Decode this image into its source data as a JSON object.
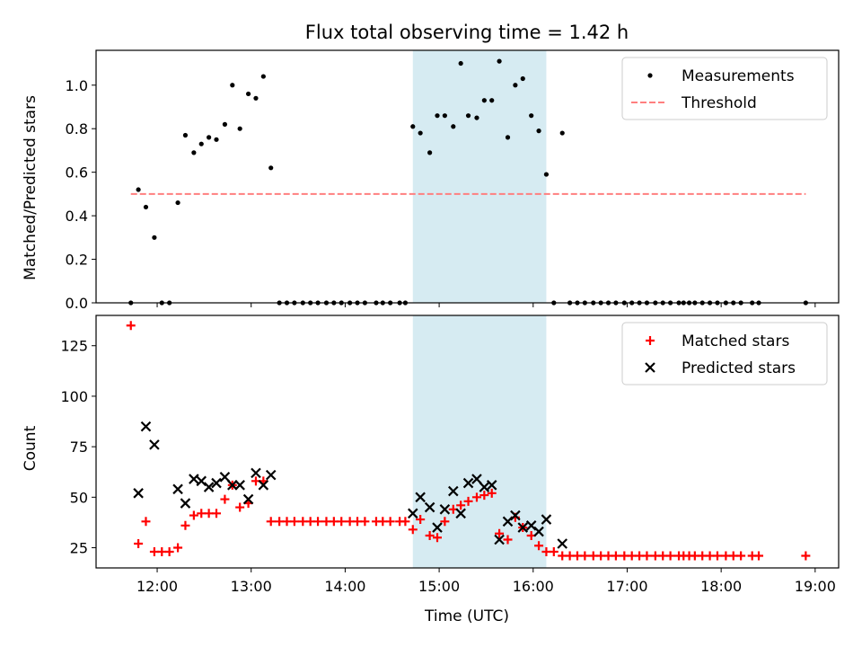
{
  "chart_data": [
    {
      "type": "scatter",
      "title": "Flux total observing time = 1.42 h",
      "xlabel": "",
      "ylabel": "Matched/Predicted stars",
      "xlim": [
        11.35,
        19.25
      ],
      "ylim": [
        0,
        1.16
      ],
      "yticks": [
        0.0,
        0.2,
        0.4,
        0.6,
        0.8,
        1.0
      ],
      "ytick_labels": [
        "0.0",
        "0.2",
        "0.4",
        "0.6",
        "0.8",
        "1.0"
      ],
      "shaded_span": [
        14.72,
        16.14
      ],
      "legend": {
        "placement": "top-right",
        "entries": [
          "Measurements",
          "Threshold"
        ]
      },
      "series": [
        {
          "name": "Measurements",
          "color": "#000000",
          "x": [
            11.72,
            11.8,
            11.88,
            11.97,
            12.05,
            12.13,
            12.22,
            12.3,
            12.39,
            12.47,
            12.55,
            12.63,
            12.72,
            12.8,
            12.88,
            12.97,
            13.05,
            13.13,
            13.21,
            13.3,
            13.38,
            13.46,
            13.55,
            13.63,
            13.71,
            13.8,
            13.88,
            13.96,
            14.05,
            14.13,
            14.21,
            14.33,
            14.4,
            14.48,
            14.58,
            14.64,
            14.72,
            14.8,
            14.9,
            14.98,
            15.06,
            15.15,
            15.23,
            15.31,
            15.4,
            15.48,
            15.56,
            15.64,
            15.73,
            15.81,
            15.89,
            15.98,
            16.06,
            16.14,
            16.22,
            16.31,
            16.39,
            16.47,
            16.55,
            16.64,
            16.72,
            16.8,
            16.88,
            16.97,
            17.05,
            17.13,
            17.21,
            17.3,
            17.38,
            17.46,
            17.55,
            17.6,
            17.66,
            17.72,
            17.8,
            17.88,
            17.96,
            18.05,
            18.13,
            18.21,
            18.33,
            18.4,
            18.9
          ],
          "y": [
            0.0,
            0.52,
            0.44,
            0.3,
            0.0,
            0.0,
            0.46,
            0.77,
            0.69,
            0.73,
            0.76,
            0.75,
            0.82,
            1.0,
            0.8,
            0.96,
            0.94,
            1.04,
            0.62,
            0.0,
            0.0,
            0.0,
            0.0,
            0.0,
            0.0,
            0.0,
            0.0,
            0.0,
            0.0,
            0.0,
            0.0,
            0.0,
            0.0,
            0.0,
            0.0,
            0.0,
            0.81,
            0.78,
            0.69,
            0.86,
            0.86,
            0.81,
            1.1,
            0.86,
            0.85,
            0.93,
            0.93,
            1.11,
            0.76,
            1.0,
            1.03,
            0.86,
            0.79,
            0.59,
            0.0,
            0.78,
            0.0,
            0.0,
            0.0,
            0.0,
            0.0,
            0.0,
            0.0,
            0.0,
            0.0,
            0.0,
            0.0,
            0.0,
            0.0,
            0.0,
            0.0,
            0.0,
            0.0,
            0.0,
            0.0,
            0.0,
            0.0,
            0.0,
            0.0,
            0.0,
            0.0,
            0.0,
            0.0
          ]
        },
        {
          "name": "Threshold",
          "color": "#ff7f7f",
          "style": "dashed",
          "x": [
            11.72,
            18.9
          ],
          "y": [
            0.5,
            0.5
          ]
        }
      ]
    },
    {
      "type": "scatter",
      "title": "",
      "xlabel": "Time (UTC)",
      "ylabel": "Count",
      "xlim": [
        11.35,
        19.25
      ],
      "ylim": [
        15,
        140
      ],
      "yticks": [
        25,
        50,
        75,
        100,
        125
      ],
      "ytick_labels": [
        "25",
        "50",
        "75",
        "100",
        "125"
      ],
      "xticks": [
        12,
        13,
        14,
        15,
        16,
        17,
        18,
        19
      ],
      "xtick_labels": [
        "12:00",
        "13:00",
        "14:00",
        "15:00",
        "16:00",
        "17:00",
        "18:00",
        "19:00"
      ],
      "shaded_span": [
        14.72,
        16.14
      ],
      "legend": {
        "placement": "top-right",
        "entries": [
          "Matched stars",
          "Predicted stars"
        ]
      },
      "series": [
        {
          "name": "Matched stars",
          "color": "#ff0000",
          "marker": "plus",
          "x": [
            11.72,
            11.8,
            11.88,
            11.97,
            12.05,
            12.13,
            12.22,
            12.3,
            12.39,
            12.47,
            12.55,
            12.63,
            12.72,
            12.8,
            12.88,
            12.97,
            13.05,
            13.13,
            13.21,
            13.3,
            13.38,
            13.46,
            13.55,
            13.63,
            13.71,
            13.8,
            13.88,
            13.96,
            14.05,
            14.13,
            14.21,
            14.33,
            14.4,
            14.48,
            14.58,
            14.64,
            14.72,
            14.8,
            14.9,
            14.98,
            15.06,
            15.15,
            15.23,
            15.31,
            15.4,
            15.48,
            15.56,
            15.64,
            15.73,
            15.81,
            15.89,
            15.98,
            16.06,
            16.14,
            16.22,
            16.31,
            16.39,
            16.47,
            16.55,
            16.64,
            16.72,
            16.8,
            16.88,
            16.97,
            17.05,
            17.13,
            17.21,
            17.3,
            17.38,
            17.46,
            17.55,
            17.6,
            17.66,
            17.72,
            17.8,
            17.88,
            17.96,
            18.05,
            18.13,
            18.21,
            18.33,
            18.4,
            18.9
          ],
          "y": [
            135,
            27,
            38,
            23,
            23,
            23,
            25,
            36,
            41,
            42,
            42,
            42,
            49,
            56,
            45,
            47,
            58,
            58,
            38,
            38,
            38,
            38,
            38,
            38,
            38,
            38,
            38,
            38,
            38,
            38,
            38,
            38,
            38,
            38,
            38,
            38,
            34,
            39,
            31,
            30,
            38,
            44,
            46,
            48,
            50,
            51,
            52,
            32,
            29,
            40,
            35,
            31,
            26,
            23,
            23,
            21,
            21,
            21,
            21,
            21,
            21,
            21,
            21,
            21,
            21,
            21,
            21,
            21,
            21,
            21,
            21,
            21,
            21,
            21,
            21,
            21,
            21,
            21,
            21,
            21,
            21,
            21,
            21
          ]
        },
        {
          "name": "Predicted stars",
          "color": "#000000",
          "marker": "x",
          "x": [
            11.8,
            11.88,
            11.97,
            12.22,
            12.3,
            12.39,
            12.47,
            12.55,
            12.63,
            12.72,
            12.8,
            12.88,
            12.97,
            13.05,
            13.13,
            13.21,
            14.72,
            14.8,
            14.9,
            14.98,
            15.06,
            15.15,
            15.23,
            15.31,
            15.4,
            15.48,
            15.56,
            15.64,
            15.73,
            15.81,
            15.89,
            15.98,
            16.06,
            16.14,
            16.31
          ],
          "y": [
            52,
            85,
            76,
            54,
            47,
            59,
            58,
            55,
            57,
            60,
            56,
            56,
            49,
            62,
            56,
            61,
            42,
            50,
            45,
            35,
            44,
            53,
            42,
            57,
            59,
            55,
            56,
            29,
            38,
            41,
            35,
            36,
            33,
            39,
            27
          ]
        }
      ]
    }
  ]
}
